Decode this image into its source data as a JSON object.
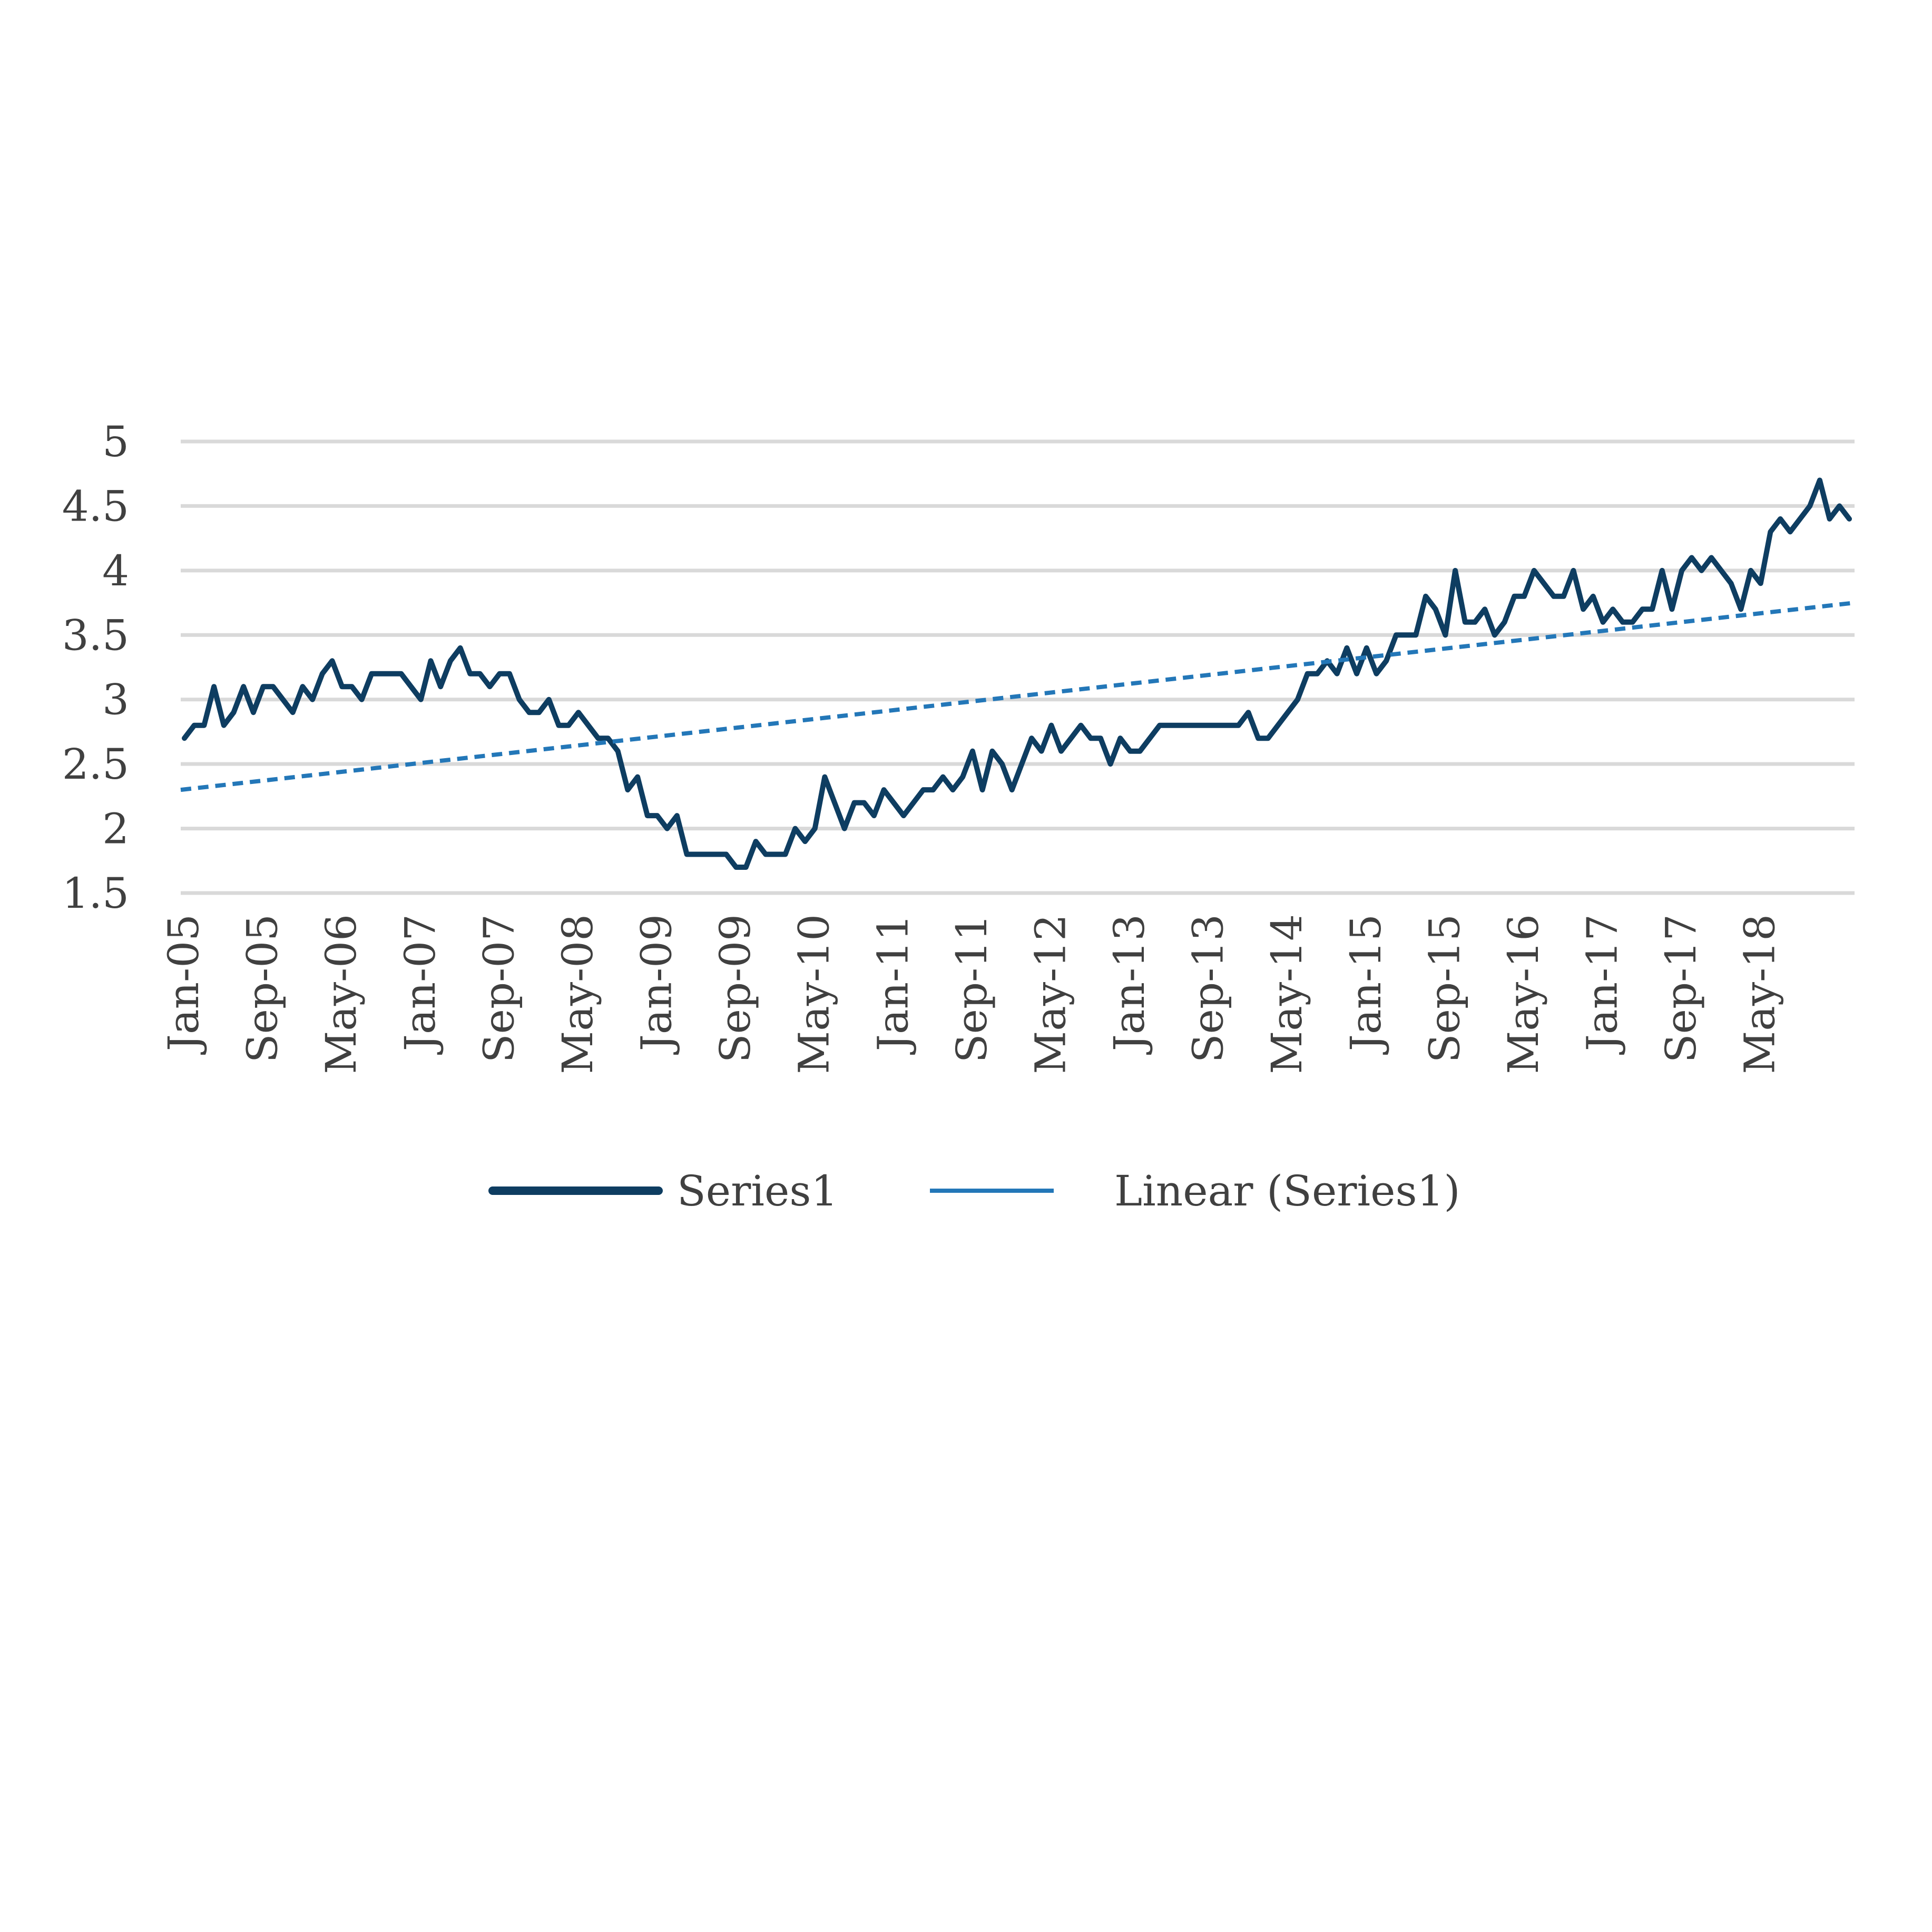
{
  "chart_data": {
    "type": "line",
    "title": "",
    "xlabel": "",
    "ylabel": "",
    "ylim": [
      1.5,
      5
    ],
    "yticks": [
      "5",
      "4.5",
      "4",
      "3.5",
      "3",
      "2.5",
      "2",
      "1.5"
    ],
    "ytick_values": [
      5,
      4.5,
      4,
      3.5,
      3,
      2.5,
      2,
      1.5
    ],
    "xticks": [
      "Jan-05",
      "Sep-05",
      "May-06",
      "Jan-07",
      "Sep-07",
      "May-08",
      "Jan-09",
      "Sep-09",
      "May-10",
      "Jan-11",
      "Sep-11",
      "May-12",
      "Jan-13",
      "Sep-13",
      "May-14",
      "Jan-15",
      "Sep-15",
      "May-16",
      "Jan-17",
      "Sep-17",
      "May-18"
    ],
    "x_start": "Jan-05",
    "x_end": "Dec-18",
    "grid": true,
    "legend": "bottom",
    "series": [
      {
        "name": "Series1",
        "color": "#0e3d61",
        "style": "solid",
        "values": [
          2.7,
          2.8,
          2.8,
          3.1,
          2.8,
          2.9,
          3.1,
          2.9,
          3.1,
          3.1,
          3.0,
          2.9,
          3.1,
          3.0,
          3.2,
          3.3,
          3.1,
          3.1,
          3.0,
          3.2,
          3.2,
          3.2,
          3.2,
          3.1,
          3.0,
          3.3,
          3.1,
          3.3,
          3.4,
          3.2,
          3.2,
          3.1,
          3.2,
          3.2,
          3.0,
          2.9,
          2.9,
          3.0,
          2.8,
          2.8,
          2.9,
          2.8,
          2.7,
          2.7,
          2.6,
          2.3,
          2.4,
          2.1,
          2.1,
          2.0,
          2.1,
          1.8,
          1.8,
          1.8,
          1.8,
          1.8,
          1.7,
          1.7,
          1.9,
          1.8,
          1.8,
          1.8,
          2.0,
          1.9,
          2.0,
          2.4,
          2.2,
          2.0,
          2.2,
          2.2,
          2.1,
          2.3,
          2.2,
          2.1,
          2.2,
          2.3,
          2.3,
          2.4,
          2.3,
          2.4,
          2.6,
          2.3,
          2.6,
          2.5,
          2.3,
          2.5,
          2.7,
          2.6,
          2.8,
          2.6,
          2.7,
          2.8,
          2.7,
          2.7,
          2.5,
          2.7,
          2.6,
          2.6,
          2.7,
          2.8,
          2.8,
          2.8,
          2.8,
          2.8,
          2.8,
          2.8,
          2.8,
          2.8,
          2.9,
          2.7,
          2.7,
          2.8,
          2.9,
          3.0,
          3.2,
          3.2,
          3.3,
          3.2,
          3.4,
          3.2,
          3.4,
          3.2,
          3.3,
          3.5,
          3.5,
          3.5,
          3.8,
          3.7,
          3.5,
          4.0,
          3.6,
          3.6,
          3.7,
          3.5,
          3.6,
          3.8,
          3.8,
          4.0,
          3.9,
          3.8,
          3.8,
          4.0,
          3.7,
          3.8,
          3.6,
          3.7,
          3.6,
          3.6,
          3.7,
          3.7,
          4.0,
          3.7,
          4.0,
          4.1,
          4.0,
          4.1,
          4.0,
          3.9,
          3.7,
          4.0,
          3.9,
          4.3,
          4.4,
          4.3,
          4.4,
          4.5,
          4.7,
          4.4,
          4.5,
          4.4
        ]
      },
      {
        "name": "Linear (Series1)",
        "color": "#2377b8",
        "style": "dashed",
        "trend_start": 2.3,
        "trend_end": 3.75
      }
    ]
  }
}
